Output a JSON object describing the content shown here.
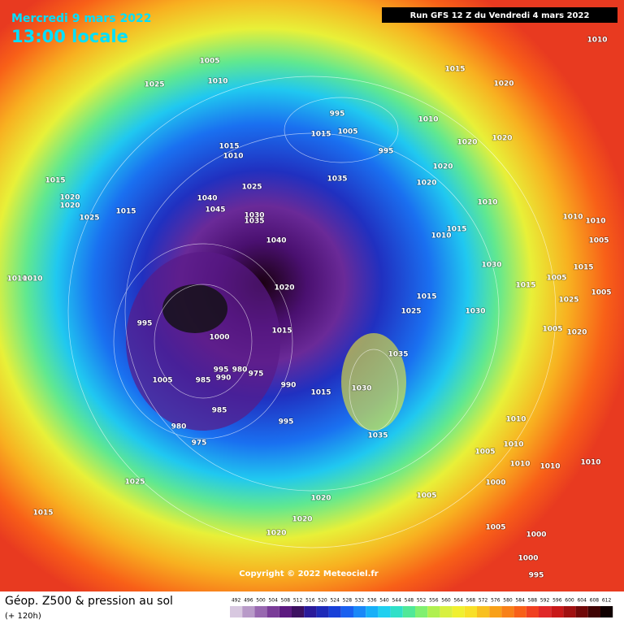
{
  "header": {
    "date": "Mercredi 9 mars 2022",
    "time": "13:00 locale",
    "run": "Run GFS 12 Z du Vendredi 4 mars 2022"
  },
  "copyright": "Copyright © 2022 Meteociel.fr",
  "footer": {
    "title": "Géop. Z500 & pression au sol",
    "lead": "(+ 120h)"
  },
  "legend": {
    "ticks": [
      492,
      496,
      500,
      504,
      508,
      512,
      516,
      520,
      524,
      528,
      532,
      536,
      540,
      544,
      548,
      552,
      556,
      560,
      564,
      568,
      572,
      576,
      580,
      584,
      588,
      592,
      596,
      600,
      604,
      608,
      612
    ],
    "colors": [
      "#d8c8e0",
      "#b89ac8",
      "#9868b0",
      "#7a3c98",
      "#5c1a80",
      "#3c1060",
      "#2a1a9a",
      "#1e2ab8",
      "#1840d8",
      "#1a60f0",
      "#1a88f8",
      "#18b0f8",
      "#20d0f0",
      "#30e0c8",
      "#50e898",
      "#80f070",
      "#b0f050",
      "#d8f040",
      "#f0f030",
      "#f8e028",
      "#f8c020",
      "#f8a018",
      "#f88018",
      "#f86018",
      "#f04020",
      "#e02828",
      "#c81818",
      "#a01010",
      "#700808",
      "#400404",
      "#100000"
    ]
  },
  "isobar_labels": [
    1005,
    1010,
    1025,
    1015,
    1020,
    1010,
    995,
    1010,
    1015,
    1005,
    995,
    1020,
    1020,
    1015,
    1010,
    1015,
    1020,
    1020,
    1025,
    1015,
    1040,
    1045,
    1025,
    1035,
    1020,
    1020,
    1010,
    1030,
    1035,
    1040,
    1010,
    1015,
    1010,
    1010,
    1005,
    1030,
    1015,
    1005,
    1010,
    1010,
    1020,
    1015,
    1005,
    1025,
    1015,
    1025,
    1030,
    995,
    1015,
    1000,
    1005,
    1020,
    1035,
    995,
    980,
    1005,
    985,
    990,
    975,
    990,
    1015,
    1030,
    985,
    995,
    1010,
    980,
    1035,
    1010,
    975,
    1005,
    1010,
    1010,
    1010,
    1025,
    1000,
    1020,
    1005,
    1015,
    1020,
    1020,
    1005,
    1000,
    1000,
    995
  ]
}
